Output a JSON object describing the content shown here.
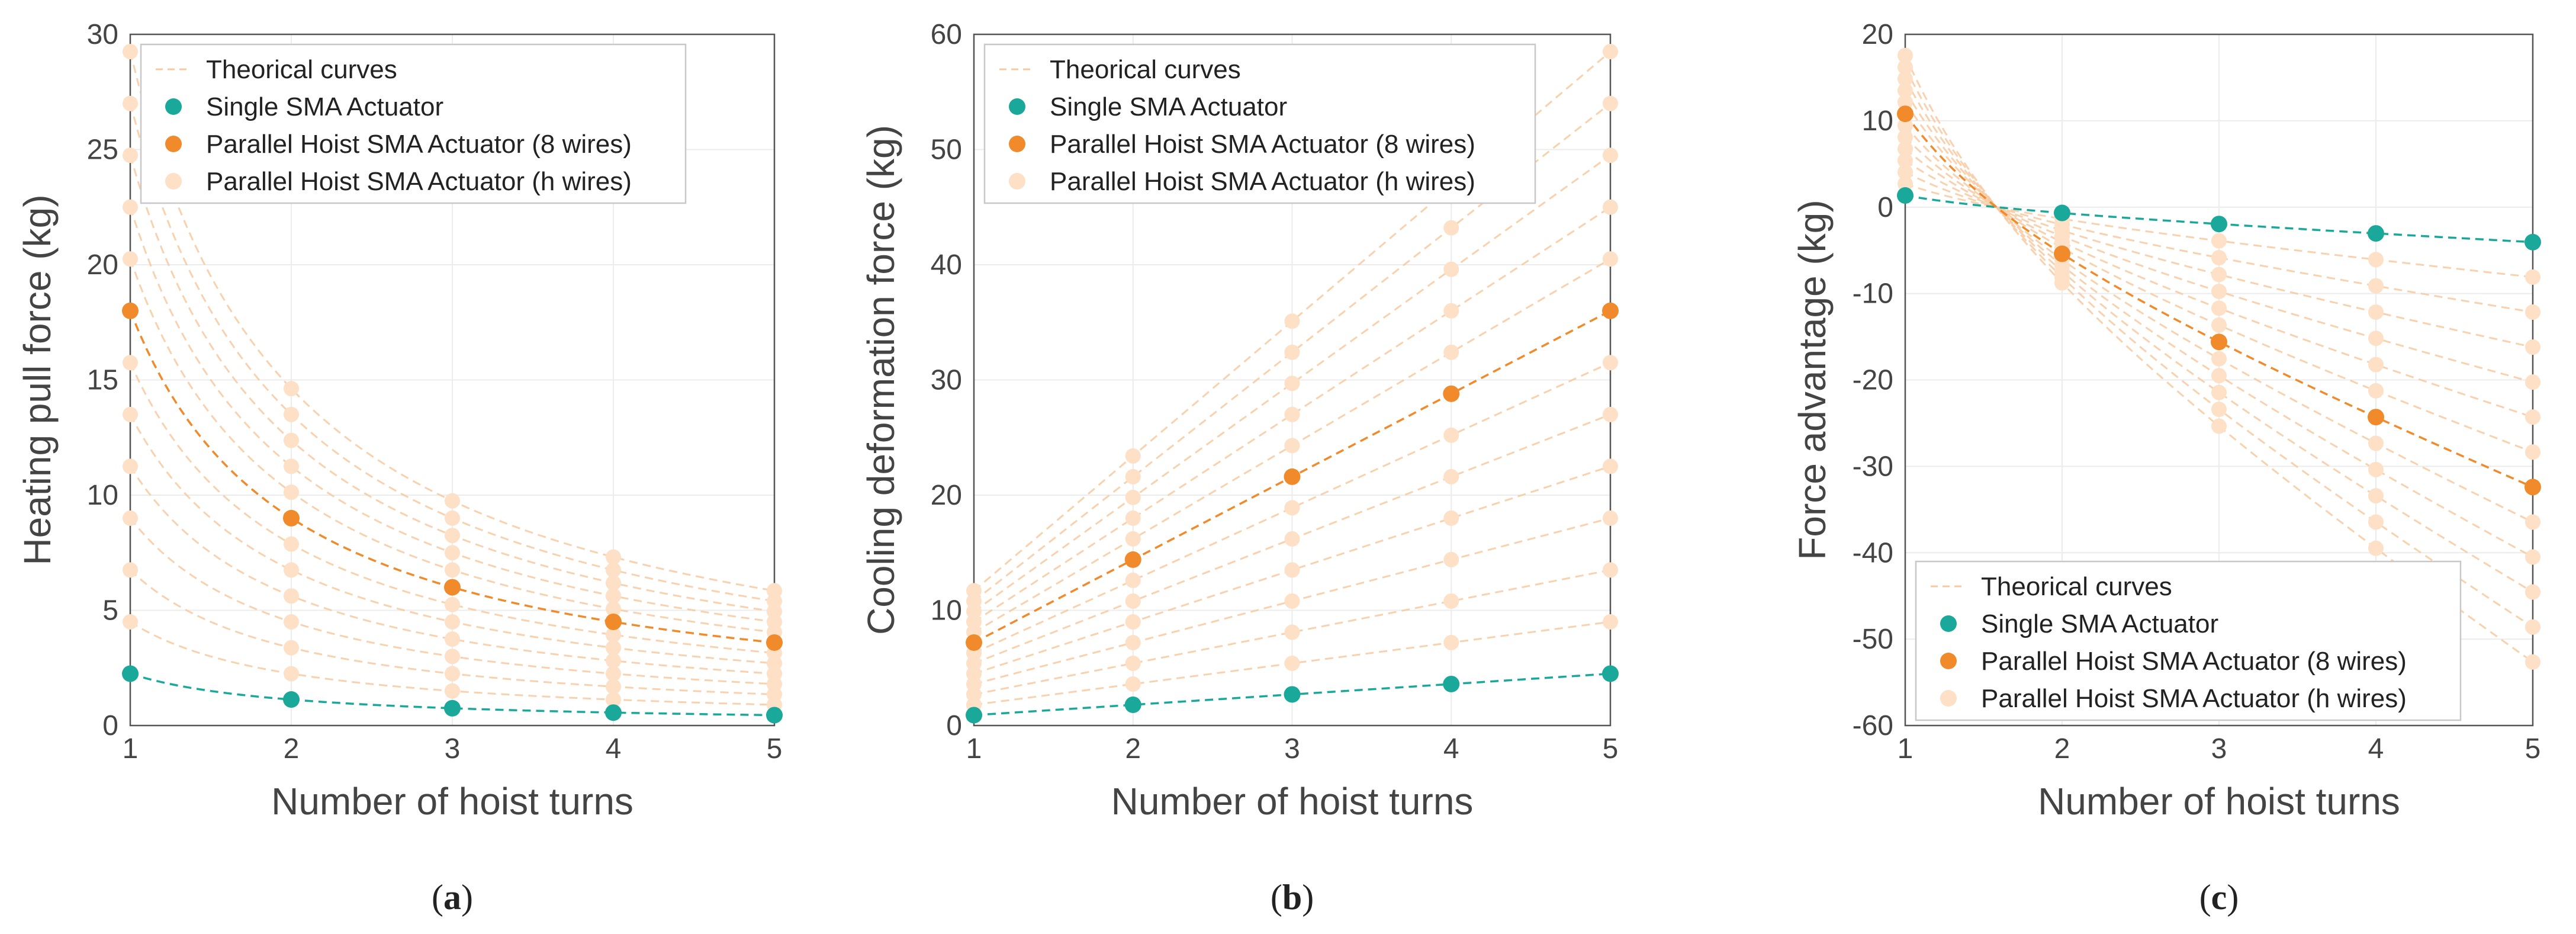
{
  "colors": {
    "single": "#1aa89a",
    "parallel8": "#f08a2a",
    "parallelH": "#fde0c5",
    "theory": "#f7c9a0",
    "axis": "#555555",
    "grid": "#ececec",
    "text": "#444444"
  },
  "legend_labels": {
    "theory": "Theorical curves",
    "single": "Single SMA Actuator",
    "parallel8": "Parallel Hoist SMA Actuator (8 wires)",
    "parallelH": "Parallel Hoist SMA Actuator (h wires)"
  },
  "chart_data": [
    {
      "type": "line",
      "id": "a",
      "caption": "a",
      "xlabel": "Number of hoist turns",
      "ylabel": "Heating pull force (kg)",
      "xlim": [
        1,
        5
      ],
      "ylim": [
        0,
        30
      ],
      "xticks": [
        1,
        2,
        3,
        4,
        5
      ],
      "yticks": [
        0,
        5,
        10,
        15,
        20,
        25,
        30
      ],
      "legend_position": "top-left",
      "x": [
        1,
        2,
        3,
        4,
        5
      ],
      "series": [
        {
          "name": "Single SMA Actuator",
          "kind": "single",
          "values": [
            2.25,
            1.13,
            0.75,
            0.56,
            0.45
          ]
        },
        {
          "name": "Parallel Hoist SMA Actuator (8 wires)",
          "kind": "parallel8",
          "values": [
            18.0,
            9.0,
            6.0,
            4.5,
            3.6
          ]
        }
      ],
      "family": {
        "name": "Parallel Hoist SMA Actuator (h wires)",
        "model": "inverse",
        "base_value": 2.25,
        "h": [
          2,
          3,
          4,
          5,
          6,
          7,
          9,
          10,
          11,
          12,
          13
        ]
      }
    },
    {
      "type": "line",
      "id": "b",
      "caption": "b",
      "xlabel": "Number of hoist turns",
      "ylabel": "Cooling deformation force (kg)",
      "xlim": [
        1,
        5
      ],
      "ylim": [
        0,
        60
      ],
      "xticks": [
        1,
        2,
        3,
        4,
        5
      ],
      "yticks": [
        0,
        10,
        20,
        30,
        40,
        50,
        60
      ],
      "legend_position": "top-left",
      "x": [
        1,
        2,
        3,
        4,
        5
      ],
      "series": [
        {
          "name": "Single SMA Actuator",
          "kind": "single",
          "values": [
            0.9,
            1.8,
            2.7,
            3.6,
            4.5
          ]
        },
        {
          "name": "Parallel Hoist SMA Actuator (8 wires)",
          "kind": "parallel8",
          "values": [
            7.2,
            14.4,
            21.6,
            28.8,
            36.0
          ]
        }
      ],
      "family": {
        "name": "Parallel Hoist SMA Actuator (h wires)",
        "model": "linear",
        "base_value": 0.9,
        "h": [
          2,
          3,
          4,
          5,
          6,
          7,
          9,
          10,
          11,
          12,
          13
        ]
      }
    },
    {
      "type": "line",
      "id": "c",
      "caption": "c",
      "xlabel": "Number of hoist turns",
      "ylabel": "Force advantage (kg)",
      "xlim": [
        1,
        5
      ],
      "ylim": [
        -60,
        20
      ],
      "xticks": [
        1,
        2,
        3,
        4,
        5
      ],
      "yticks": [
        -60,
        -50,
        -40,
        -30,
        -20,
        -10,
        0,
        10,
        20
      ],
      "legend_position": "bottom-left",
      "x": [
        1,
        2,
        3,
        4,
        5
      ],
      "series": [
        {
          "name": "Single SMA Actuator",
          "kind": "single",
          "values": [
            1.35,
            -0.67,
            -1.95,
            -3.04,
            -4.05
          ]
        },
        {
          "name": "Parallel Hoist SMA Actuator (8 wires)",
          "kind": "parallel8",
          "values": [
            10.8,
            -5.4,
            -15.6,
            -24.3,
            -32.4
          ]
        }
      ],
      "family": {
        "name": "Parallel Hoist SMA Actuator (h wires)",
        "model": "difference",
        "base_a": 2.25,
        "base_b": 0.9,
        "h": [
          2,
          3,
          4,
          5,
          6,
          7,
          9,
          10,
          11,
          12,
          13
        ]
      }
    }
  ]
}
